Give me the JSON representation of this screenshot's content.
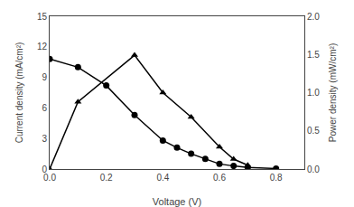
{
  "chart_data": {
    "type": "line",
    "xlabel": "Voltage (V)",
    "ylabel": "Current density (mA/cm²)",
    "y2label": "Power density (mW/cm²)",
    "series": [
      {
        "x": [
          0.0,
          0.1,
          0.2,
          0.3,
          0.4,
          0.45,
          0.5,
          0.55,
          0.6,
          0.65,
          0.7,
          0.8
        ],
        "values": [
          10.8,
          10.0,
          8.2,
          5.3,
          2.8,
          2.1,
          1.5,
          1.0,
          0.5,
          0.3,
          0.15,
          0.05
        ],
        "color": "black",
        "marker": "circle"
      },
      {
        "x": [
          0.0,
          0.1,
          0.3,
          0.4,
          0.5,
          0.6,
          0.65,
          0.7
        ],
        "values": [
          0.0,
          0.88,
          1.49,
          1.0,
          0.68,
          0.29,
          0.13,
          0.05
        ],
        "color": "black",
        "marker": "triangle-up",
        "axis": "y2"
      }
    ],
    "xlim": [
      0,
      0.9
    ],
    "xticks": [
      {
        "value": 0,
        "label": "0.0"
      },
      0.2,
      0.4,
      0.6,
      0.8
    ],
    "ylim": [
      0,
      15
    ],
    "yticks": [
      0,
      3,
      6,
      9,
      12,
      15
    ],
    "y2lim": [
      0,
      2
    ],
    "y2ticks": [
      {
        "value": 0,
        "label": "0.0"
      },
      0.5,
      {
        "value": 1,
        "label": "1.0"
      },
      1.5,
      {
        "value": 2,
        "label": "2.0"
      }
    ],
    "grid": false
  }
}
